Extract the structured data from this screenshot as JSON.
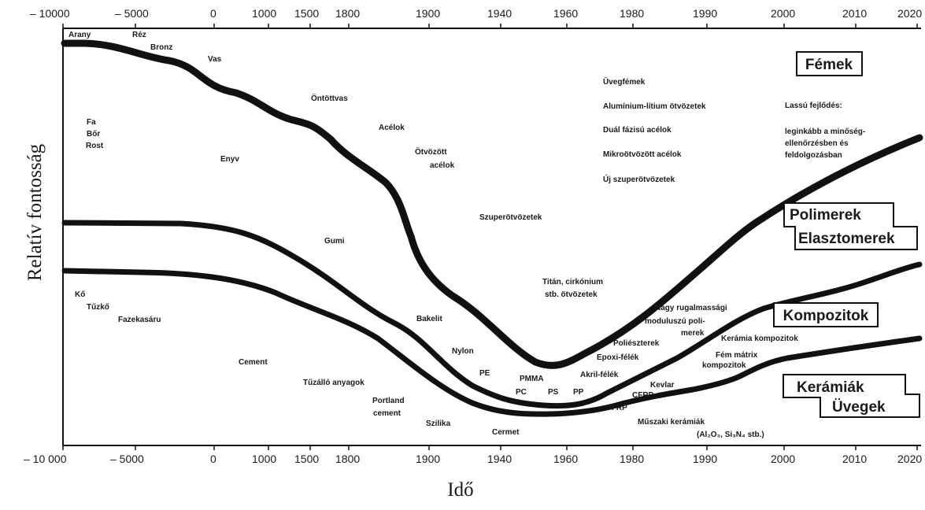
{
  "axis": {
    "top_ticks": [
      "– 10000",
      "– 5000",
      "0",
      "1000",
      "1500",
      "1800",
      "1900",
      "1940",
      "1960",
      "1980",
      "1990",
      "2000",
      "2010",
      "2020"
    ],
    "bottom_ticks": [
      "– 10 000",
      "– 5000",
      "0",
      "1000",
      "1500",
      "1800",
      "1900",
      "1940",
      "1960",
      "1980",
      "1990",
      "2000",
      "2010",
      "2020"
    ],
    "x_title": "Idő",
    "y_title": "Relatív fontosság"
  },
  "categories": {
    "metals": "Fémek",
    "polymers": "Polimerek",
    "elastomers": "Elasztomerek",
    "composites": "Kompozitok",
    "ceramics": "Kerámiák",
    "glasses": "Üvegek"
  },
  "materials": {
    "arany": "Arany",
    "rez": "Réz",
    "bronz": "Bronz",
    "vas": "Vas",
    "ontottvas": "Öntöttvas",
    "acelok": "Acélok",
    "otvozott1": "Ötvözött",
    "otvozott2": "acélok",
    "fa": "Fa",
    "bor": "Bőr",
    "rost": "Rost",
    "enyv": "Enyv",
    "szuper": "Szuperötvözetek",
    "gumi": "Gumi",
    "titan1": "Titán, cirkónium",
    "titan2": "stb. ötvözetek",
    "ko": "Kő",
    "tuzko": "Tűzkő",
    "fazekas": "Fazekasáru",
    "bakelit": "Bakelit",
    "nylon": "Nylon",
    "pe": "PE",
    "pmma": "PMMA",
    "pc": "PC",
    "ps": "PS",
    "pp": "PP",
    "cement": "Cement",
    "tuzallo": "Tűzálló anyagok",
    "portland1": "Portland",
    "portland2": "cement",
    "szilika": "Szilika",
    "cermet": "Cermet",
    "uvegfemek": "Üvegfémek",
    "alli": "Alumínium-lítium ötvözetek",
    "dual": "Duál fázisú acélok",
    "mikro": "Mikroötvözött acélok",
    "ujszuper": "Új szuperötvözetek",
    "lassu": "Lassú fejlődés:",
    "leg1": "leginkább a minőség-",
    "leg2": "ellenőrzésben és",
    "leg3": "feldolgozásban",
    "nagy1": "Nagy rugalmassági",
    "nagy2": "moduluszú poli-",
    "nagy3": "merek",
    "poliesz": "Poliészterek",
    "epoxi": "Epoxi-félék",
    "akril": "Akril-félék",
    "kevlar": "Kevlar",
    "cfrp": "CFRP",
    "gfrp": "GFRP",
    "kerkomp": "Kerámia kompozitok",
    "femmatrix1": "Fém mátrix",
    "femmatrix2": "kompozitok",
    "muszaki": "Műszaki kerámiák",
    "formula": "(Al₂O₃, Si₃N₄ stb.)"
  }
}
